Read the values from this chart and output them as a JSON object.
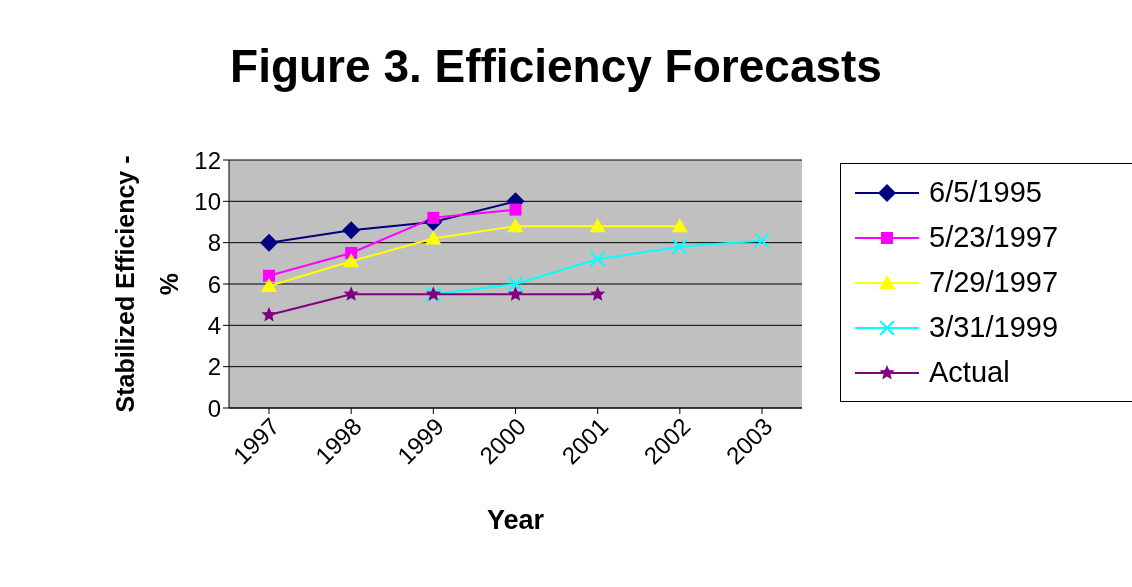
{
  "chart_data": {
    "type": "line",
    "title": "Figure 3.  Efficiency Forecasts",
    "xlabel": "Year",
    "ylabel": "Stabilized Efficiency - %",
    "categories": [
      "1997",
      "1998",
      "1999",
      "2000",
      "2001",
      "2002",
      "2003"
    ],
    "series": [
      {
        "name": "6/5/1995",
        "color": "#000080",
        "marker": "diamond",
        "values": [
          8.0,
          8.6,
          9.0,
          10.0,
          null,
          null,
          null
        ]
      },
      {
        "name": "5/23/1997",
        "color": "#ff00ff",
        "marker": "square",
        "values": [
          6.4,
          7.5,
          9.2,
          9.6,
          null,
          null,
          null
        ]
      },
      {
        "name": "7/29/1997",
        "color": "#ffff00",
        "marker": "triangle",
        "values": [
          5.9,
          7.1,
          8.2,
          8.8,
          8.8,
          8.8,
          null
        ]
      },
      {
        "name": "3/31/1999",
        "color": "#00ffff",
        "marker": "cross",
        "values": [
          null,
          null,
          5.5,
          6.0,
          7.2,
          7.8,
          8.1
        ]
      },
      {
        "name": "Actual",
        "color": "#800080",
        "marker": "star",
        "values": [
          4.5,
          5.5,
          5.5,
          5.5,
          5.5,
          null,
          null
        ]
      }
    ],
    "ylim": [
      0,
      12
    ],
    "yticks": [
      0,
      2,
      4,
      6,
      8,
      10,
      12
    ],
    "grid": "y",
    "legend": "right"
  }
}
